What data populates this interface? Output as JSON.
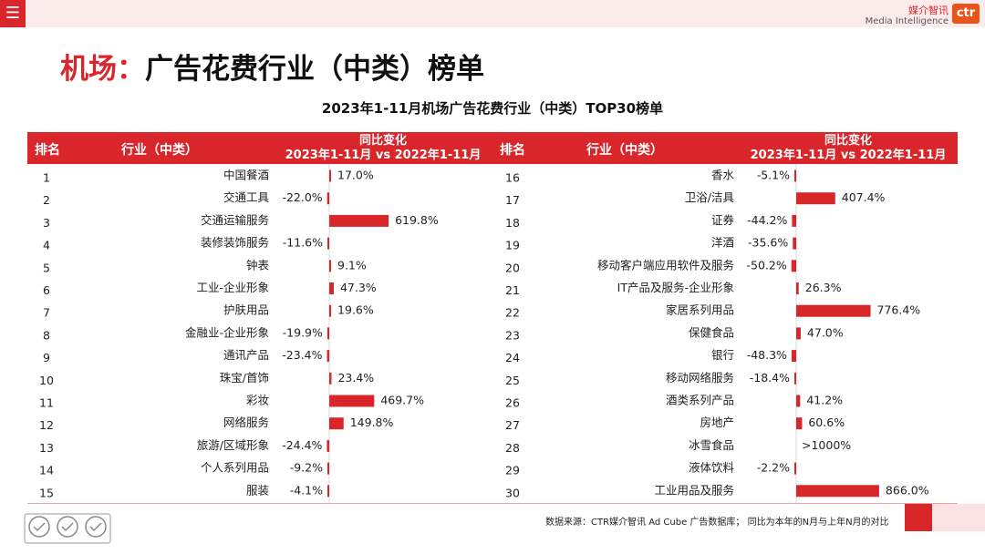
{
  "header": {
    "menu_icon": "hamburger-icon",
    "brand_cn": "媒介智讯",
    "brand_en": "Media Intelligence",
    "logo_text": "ctr"
  },
  "page": {
    "title_accent": "机场：",
    "title_rest": "广告花费行业（中类）榜单"
  },
  "chart_data": {
    "type": "table",
    "title": "2023年1-11月机场广告花费行业（中类）TOP30榜单",
    "columns": {
      "rank": "排名",
      "industry": "行业（中类）",
      "change_line1": "同比变化",
      "change_line2": "2023年1-11月 vs 2022年1-11月"
    },
    "value_unit": "%",
    "rows_left": [
      {
        "rank": "1",
        "industry": "中国餐酒",
        "value": 17.0,
        "label": "17.0%"
      },
      {
        "rank": "2",
        "industry": "交通工具",
        "value": -22.0,
        "label": "-22.0%"
      },
      {
        "rank": "3",
        "industry": "交通运输服务",
        "value": 619.8,
        "label": "619.8%"
      },
      {
        "rank": "4",
        "industry": "装修装饰服务",
        "value": -11.6,
        "label": "-11.6%"
      },
      {
        "rank": "5",
        "industry": "钟表",
        "value": 9.1,
        "label": "9.1%"
      },
      {
        "rank": "6",
        "industry": "工业-企业形象",
        "value": 47.3,
        "label": "47.3%"
      },
      {
        "rank": "7",
        "industry": "护肤用品",
        "value": 19.6,
        "label": "19.6%"
      },
      {
        "rank": "8",
        "industry": "金融业-企业形象",
        "value": -19.9,
        "label": "-19.9%"
      },
      {
        "rank": "9",
        "industry": "通讯产品",
        "value": -23.4,
        "label": "-23.4%"
      },
      {
        "rank": "10",
        "industry": "珠宝/首饰",
        "value": 23.4,
        "label": "23.4%"
      },
      {
        "rank": "11",
        "industry": "彩妆",
        "value": 469.7,
        "label": "469.7%"
      },
      {
        "rank": "12",
        "industry": "网络服务",
        "value": 149.8,
        "label": "149.8%"
      },
      {
        "rank": "13",
        "industry": "旅游/区域形象",
        "value": -24.4,
        "label": "-24.4%"
      },
      {
        "rank": "14",
        "industry": "个人系列用品",
        "value": -9.2,
        "label": "-9.2%"
      },
      {
        "rank": "15",
        "industry": "服装",
        "value": -4.1,
        "label": "-4.1%"
      }
    ],
    "rows_right": [
      {
        "rank": "16",
        "industry": "香水",
        "value": -5.1,
        "label": "-5.1%"
      },
      {
        "rank": "17",
        "industry": "卫浴/洁具",
        "value": 407.4,
        "label": "407.4%"
      },
      {
        "rank": "18",
        "industry": "证券",
        "value": -44.2,
        "label": "-44.2%"
      },
      {
        "rank": "19",
        "industry": "洋酒",
        "value": -35.6,
        "label": "-35.6%"
      },
      {
        "rank": "20",
        "industry": "移动客户端应用软件及服务",
        "value": -50.2,
        "label": "-50.2%"
      },
      {
        "rank": "21",
        "industry": "IT产品及服务-企业形象",
        "value": 26.3,
        "label": "26.3%"
      },
      {
        "rank": "22",
        "industry": "家居系列用品",
        "value": 776.4,
        "label": "776.4%"
      },
      {
        "rank": "23",
        "industry": "保健食品",
        "value": 47.0,
        "label": "47.0%"
      },
      {
        "rank": "24",
        "industry": "银行",
        "value": -48.3,
        "label": "-48.3%"
      },
      {
        "rank": "25",
        "industry": "移动网络服务",
        "value": -18.4,
        "label": "-18.4%"
      },
      {
        "rank": "26",
        "industry": "酒类系列产品",
        "value": 41.2,
        "label": "41.2%"
      },
      {
        "rank": "27",
        "industry": "房地产",
        "value": 60.6,
        "label": "60.6%"
      },
      {
        "rank": "28",
        "industry": "冰雪食品",
        "value": null,
        "label": ">1000%"
      },
      {
        "rank": "29",
        "industry": "液体饮料",
        "value": -2.2,
        "label": "-2.2%"
      },
      {
        "rank": "30",
        "industry": "工业用品及服务",
        "value": 866.0,
        "label": "866.0%"
      }
    ],
    "bar_color": "#d8262b"
  },
  "footer": {
    "source": "数据来源：CTR媒介智讯 Ad Cube 广告数据库；  同比为本年的N月与上年N月的对比",
    "seal_icon": "certification-seal-icon"
  }
}
